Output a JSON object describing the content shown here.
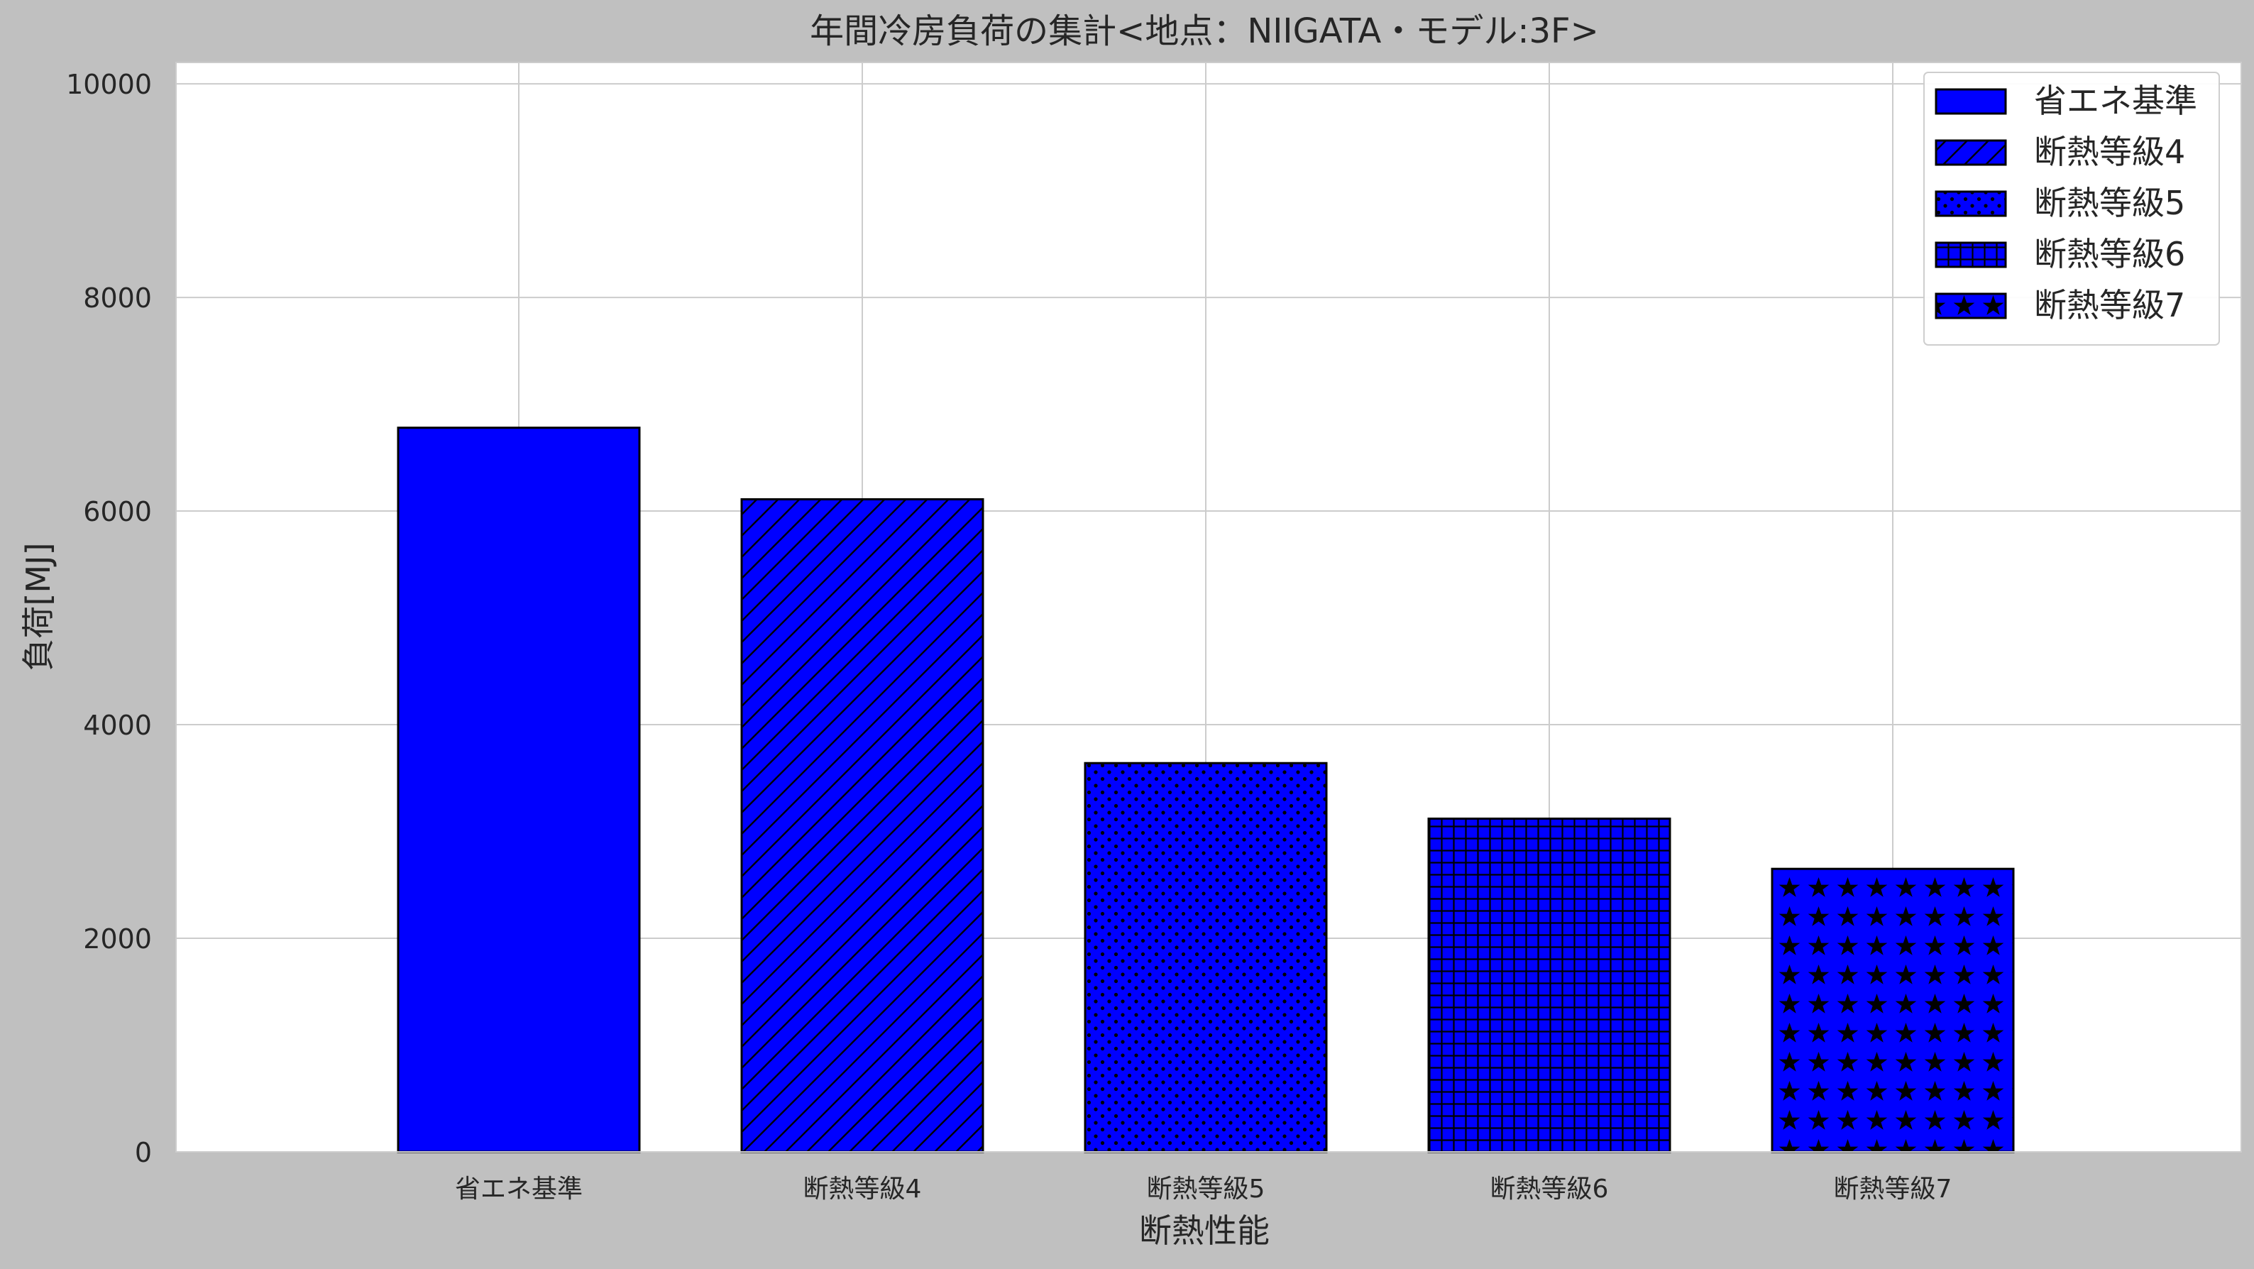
{
  "chart_data": {
    "type": "bar",
    "title": "年間冷房負荷の集計<地点：NIIGATA・モデル:3F>",
    "xlabel": "断熱性能",
    "ylabel": "負荷[MJ]",
    "categories": [
      "省エネ基準",
      "断熱等級4",
      "断熱等級5",
      "断熱等級6",
      "断熱等級7"
    ],
    "values": [
      6780,
      6110,
      3640,
      3120,
      2650
    ],
    "ylim": [
      0,
      10200
    ],
    "yticks": [
      "0",
      "2000",
      "4000",
      "6000",
      "8000",
      "10000"
    ],
    "grid": true,
    "legend_position": "top-right",
    "legend": [
      "省エネ基準",
      "断熱等級4",
      "断熱等級5",
      "断熱等級6",
      "断熱等級7"
    ],
    "hatches": [
      "none",
      "diagonal",
      "dots",
      "grid",
      "stars"
    ],
    "colors": {
      "bar_fill": "#0000ff",
      "bar_edge": "#000000",
      "plot_background": "#ffffff",
      "figure_background": "#c0c0c0",
      "grid": "#cccccc",
      "text": "#262626"
    }
  }
}
